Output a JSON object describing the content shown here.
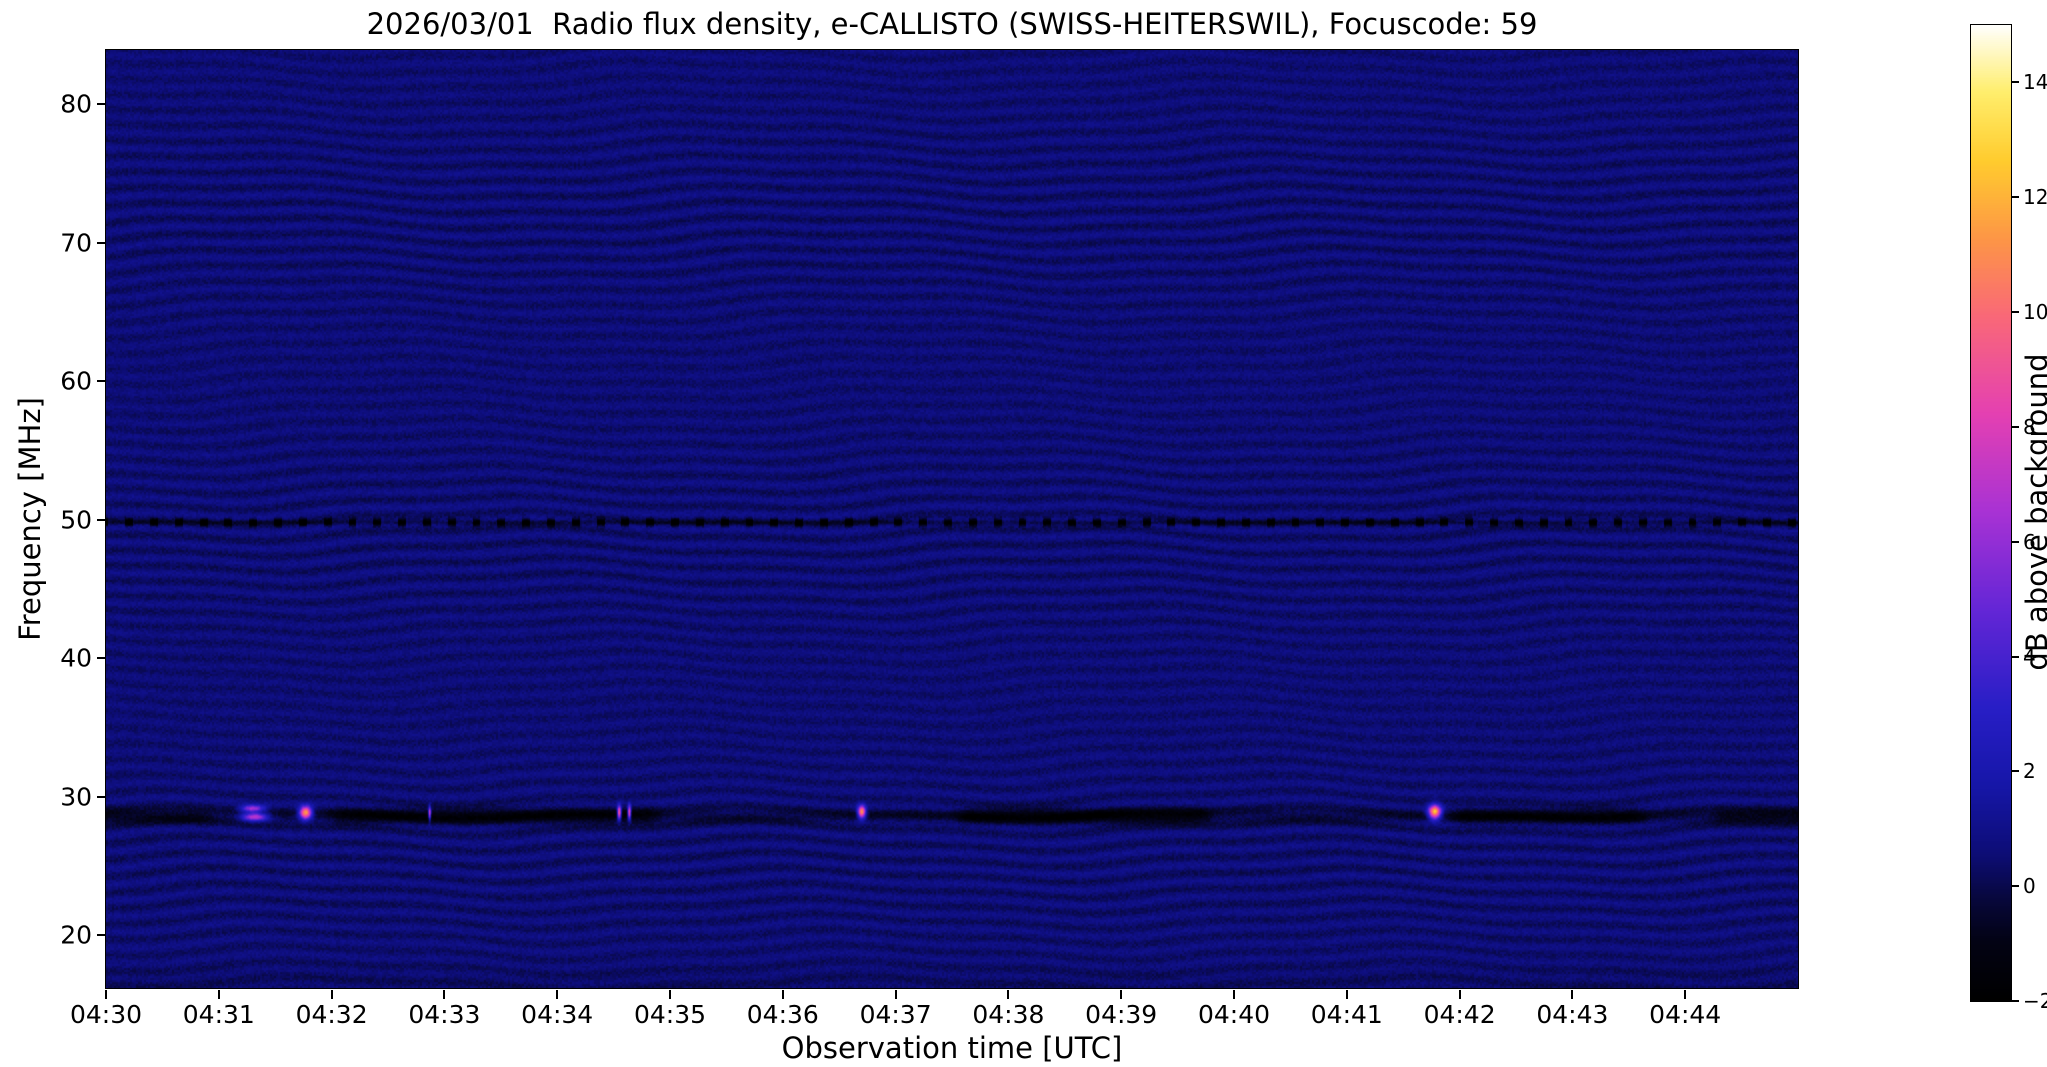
{
  "page": {
    "background": "#ffffff"
  },
  "chart_data": {
    "type": "heatmap",
    "title": "2026/03/01  Radio flux density, e-CALLISTO (SWISS-HEITERSWIL), Focuscode: 59",
    "xlabel": "Observation time [UTC]",
    "ylabel": "Frequency [MHz]",
    "x_ticks": [
      "04:30",
      "04:31",
      "04:32",
      "04:33",
      "04:34",
      "04:35",
      "04:36",
      "04:37",
      "04:38",
      "04:39",
      "04:40",
      "04:41",
      "04:42",
      "04:43",
      "04:44"
    ],
    "xlim": [
      0,
      15
    ],
    "y_ticks": [
      20,
      30,
      40,
      50,
      60,
      70,
      80
    ],
    "ylim": [
      16.2,
      83.9
    ],
    "grid": false,
    "colorbar": {
      "label": "dB above background",
      "vmin": -2,
      "vmax": 15,
      "ticks": [
        14,
        12,
        10,
        8,
        6,
        4,
        2,
        0,
        -2
      ]
    },
    "colormap": [
      [
        0.0,
        [
          0,
          0,
          0
        ]
      ],
      [
        0.06,
        [
          3,
          3,
          20
        ]
      ],
      [
        0.1,
        [
          7,
          7,
          56
        ]
      ],
      [
        0.15,
        [
          13,
          13,
          118
        ]
      ],
      [
        0.22,
        [
          22,
          22,
          168
        ]
      ],
      [
        0.3,
        [
          40,
          30,
          198
        ]
      ],
      [
        0.4,
        [
          100,
          38,
          214
        ]
      ],
      [
        0.5,
        [
          168,
          50,
          212
        ]
      ],
      [
        0.6,
        [
          228,
          64,
          178
        ]
      ],
      [
        0.7,
        [
          249,
          104,
          120
        ]
      ],
      [
        0.78,
        [
          253,
          150,
          70
        ]
      ],
      [
        0.86,
        [
          255,
          204,
          46
        ]
      ],
      [
        0.93,
        [
          255,
          238,
          108
        ]
      ],
      [
        1.0,
        [
          255,
          255,
          255
        ]
      ]
    ],
    "background": {
      "level_db": 0.55,
      "noise_db": 0.62,
      "ripple_wavelength_mhz": 1.12
    },
    "rfi": {
      "absorption_band_mhz": 28.6,
      "band_sigma_mhz": 0.55,
      "dashed_line_mhz": 49.8,
      "dash_period_min": 0.22,
      "dark_segments": [
        {
          "start_min": -0.3,
          "end_min": 1.0,
          "depth_db": 0.7
        },
        {
          "start_min": 1.95,
          "end_min": 4.95,
          "depth_db": 1.2
        },
        {
          "start_min": 7.5,
          "end_min": 9.85,
          "depth_db": 1.4
        },
        {
          "start_min": 11.9,
          "end_min": 13.7,
          "depth_db": 1.2
        },
        {
          "start_min": 14.2,
          "end_min": 15.3,
          "depth_db": 0.9
        }
      ]
    },
    "bursts": [
      {
        "time_min": 1.3,
        "width_min": 0.1,
        "freq_mhz": 29.15,
        "freq_sigma_mhz": 0.25,
        "peak_db": 6.5
      },
      {
        "time_min": 1.32,
        "width_min": 0.11,
        "freq_mhz": 28.55,
        "freq_sigma_mhz": 0.3,
        "peak_db": 7.2
      },
      {
        "time_min": 1.77,
        "width_min": 0.055,
        "freq_mhz": 28.85,
        "freq_sigma_mhz": 0.45,
        "peak_db": 12.0
      },
      {
        "time_min": 2.87,
        "width_min": 0.012,
        "freq_mhz": 28.8,
        "freq_sigma_mhz": 0.5,
        "peak_db": 8.5
      },
      {
        "time_min": 4.55,
        "width_min": 0.018,
        "freq_mhz": 28.85,
        "freq_sigma_mhz": 0.5,
        "peak_db": 10.5
      },
      {
        "time_min": 4.64,
        "width_min": 0.015,
        "freq_mhz": 28.85,
        "freq_sigma_mhz": 0.5,
        "peak_db": 10.0
      },
      {
        "time_min": 6.7,
        "width_min": 0.035,
        "freq_mhz": 28.9,
        "freq_sigma_mhz": 0.45,
        "peak_db": 11.5
      },
      {
        "time_min": 11.78,
        "width_min": 0.055,
        "freq_mhz": 28.9,
        "freq_sigma_mhz": 0.5,
        "peak_db": 12.5
      }
    ]
  }
}
